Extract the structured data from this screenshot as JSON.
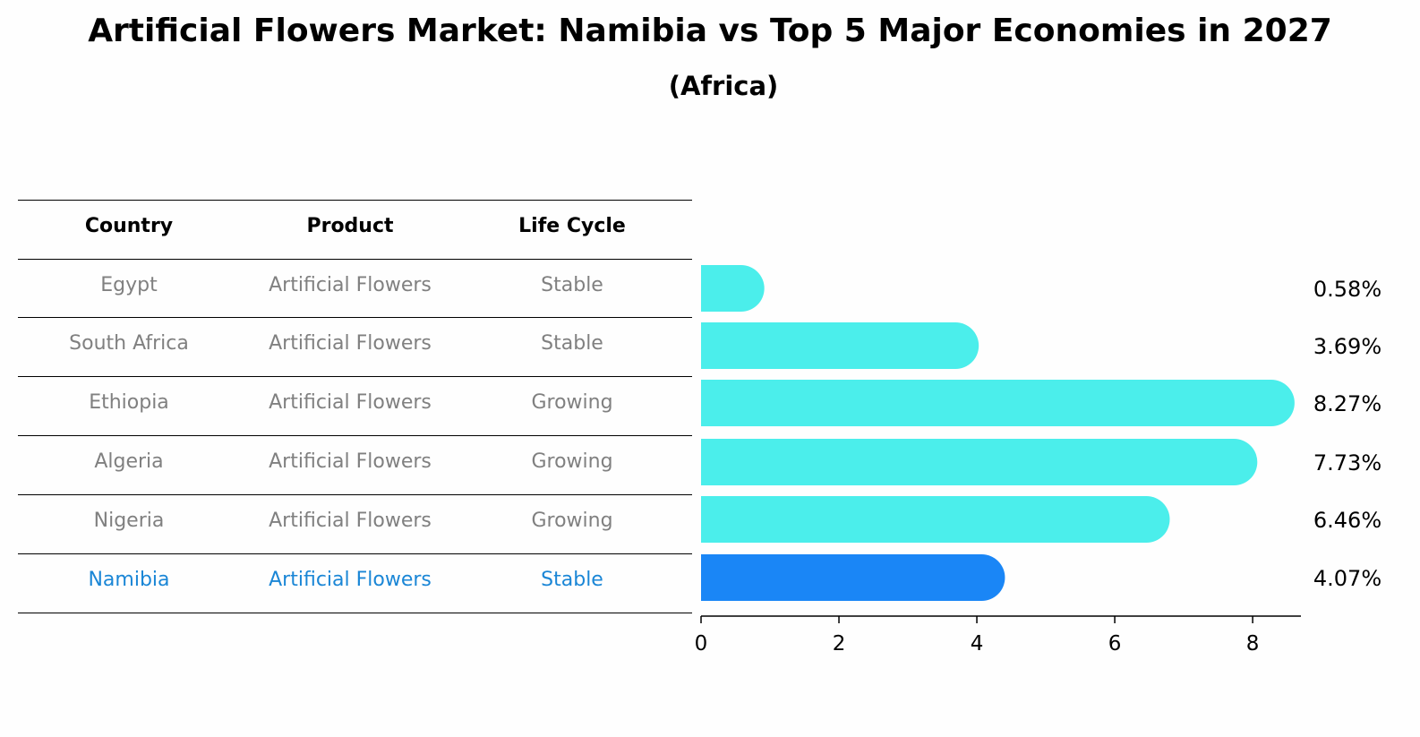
{
  "header": {
    "title": "Artificial Flowers Market: Namibia vs Top 5 Major Economies in 2027",
    "subtitle": "(Africa)"
  },
  "table": {
    "columns": [
      "Country",
      "Product",
      "Life Cycle"
    ],
    "rows": [
      {
        "country": "Egypt",
        "product": "Artificial Flowers",
        "life_cycle": "Stable"
      },
      {
        "country": "South Africa",
        "product": "Artificial Flowers",
        "life_cycle": "Stable"
      },
      {
        "country": "Ethiopia",
        "product": "Artificial Flowers",
        "life_cycle": "Growing"
      },
      {
        "country": "Algeria",
        "product": "Artificial Flowers",
        "life_cycle": "Growing"
      },
      {
        "country": "Nigeria",
        "product": "Artificial Flowers",
        "life_cycle": "Growing"
      },
      {
        "country": "Namibia",
        "product": "Artificial Flowers",
        "life_cycle": "Stable"
      }
    ],
    "highlight_row": "Namibia"
  },
  "chart_data": {
    "type": "bar",
    "orientation": "horizontal",
    "categories": [
      "Egypt",
      "South Africa",
      "Ethiopia",
      "Algeria",
      "Nigeria",
      "Namibia"
    ],
    "values": [
      0.58,
      3.69,
      8.27,
      7.73,
      6.46,
      4.07
    ],
    "value_labels": [
      "0.58%",
      "3.69%",
      "8.27%",
      "7.73%",
      "6.46%",
      "4.07%"
    ],
    "xlim": [
      0,
      8.7
    ],
    "xticks": [
      0,
      2,
      4,
      6,
      8
    ],
    "xtick_labels": [
      "0",
      "2",
      "4",
      "6",
      "8"
    ],
    "grid": false,
    "colors": {
      "default": "#4beeeb",
      "highlight": "#1a86f6"
    },
    "highlight_category": "Namibia"
  }
}
